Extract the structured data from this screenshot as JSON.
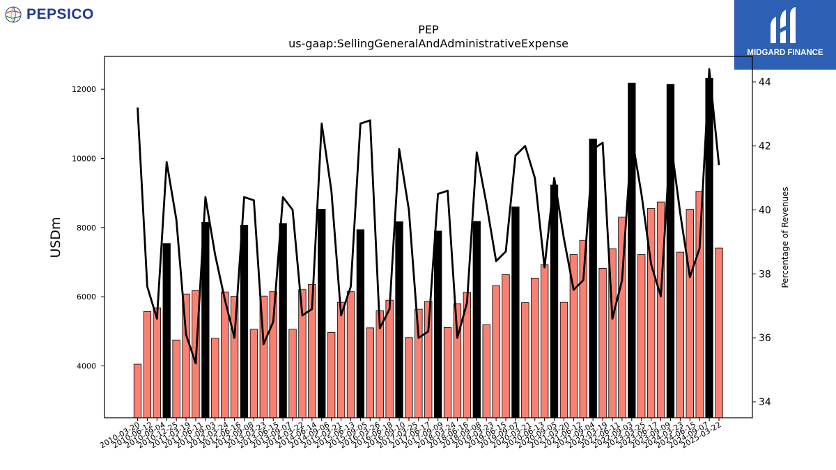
{
  "branding": {
    "left_logo_text": "PEPSICO",
    "right_logo_text": "MIDGARD FINANCE",
    "right_logo_bg": "#2d5fb4"
  },
  "chart_data": {
    "type": "bar",
    "title": "PEP",
    "subtitle": "us-gaap:SellingGeneralAndAdministrativeExpense",
    "ylabel": "USDm",
    "y2label": "Percentage of Revenues",
    "ylim": [
      2500,
      12950
    ],
    "y2lim": [
      33.5,
      44.8
    ],
    "yticks": [
      4000,
      6000,
      8000,
      10000,
      12000
    ],
    "y2ticks": [
      34,
      36,
      38,
      40,
      42,
      44
    ],
    "bar_colors": {
      "quarter": "#fa8072",
      "annual": "#000000"
    },
    "line_color": "#000000",
    "xtick_labels": [
      "2010-03-20",
      "2010-06-12",
      "2010-09-04",
      "2010-12-25",
      "2011-03-19",
      "2011-06-11",
      "2011-09-03",
      "2012-03-24",
      "2012-06-16",
      "2012-09-08",
      "2013-03-23",
      "2013-06-15",
      "2013-09-07",
      "2014-03-22",
      "2014-06-14",
      "2014-09-06",
      "2015-03-21",
      "2015-06-13",
      "2015-09-05",
      "2016-03-26",
      "2016-06-18",
      "2016-09-10",
      "2017-03-25",
      "2017-06-17",
      "2017-09-09",
      "2018-03-24",
      "2018-06-16",
      "2018-09-08",
      "2019-03-23",
      "2019-06-15",
      "2019-09-07",
      "2020-03-21",
      "2020-06-13",
      "2020-09-05",
      "2021-03-20",
      "2021-06-12",
      "2021-09-04",
      "2022-03-19",
      "2022-06-11",
      "2022-09-03",
      "2023-03-25",
      "2023-06-17",
      "2023-09-09",
      "2024-03-23",
      "2024-06-15",
      "2024-09-07",
      "2025-03-22"
    ],
    "series": [
      {
        "kind": "bar",
        "values": [
          4050,
          5570,
          5680,
          7540,
          4750,
          6080,
          6180,
          8150,
          4800,
          6140,
          6010,
          8070,
          5060,
          6020,
          6150,
          8120,
          5060,
          6210,
          6360,
          8530,
          4970,
          5840,
          6150,
          7940,
          5100,
          5600,
          5900,
          8170,
          4820,
          5640,
          5870,
          7900,
          5110,
          5800,
          6130,
          8180,
          5190,
          6320,
          6640,
          8600,
          5830,
          6540,
          6930,
          9230,
          5840,
          7220,
          7630,
          10560,
          6820,
          7390,
          8300,
          12180,
          7220,
          8550,
          8740,
          12140,
          7290,
          8530,
          9050,
          12320,
          7410
        ],
        "annual_flags": [
          0,
          0,
          0,
          1,
          0,
          0,
          0,
          1,
          0,
          0,
          0,
          1,
          0,
          0,
          0,
          1,
          0,
          0,
          0,
          1,
          0,
          0,
          0,
          1,
          0,
          0,
          0,
          1,
          0,
          0,
          0,
          1,
          0,
          0,
          0,
          1,
          0,
          0,
          0,
          1,
          0,
          0,
          0,
          1,
          0,
          0,
          0,
          1,
          0,
          0,
          0,
          1,
          0,
          0,
          0,
          1,
          0,
          0,
          0,
          1,
          0
        ]
      },
      {
        "kind": "line",
        "values": [
          43.2,
          37.6,
          36.6,
          41.5,
          39.7,
          36.1,
          35.2,
          40.4,
          38.6,
          37.2,
          36.0,
          40.4,
          40.3,
          35.8,
          36.5,
          40.4,
          40.0,
          36.7,
          36.9,
          42.7,
          40.6,
          36.7,
          37.6,
          42.7,
          42.8,
          36.3,
          36.9,
          41.9,
          40.0,
          36.0,
          36.2,
          40.5,
          40.6,
          36.0,
          37.1,
          41.8,
          40.2,
          38.4,
          38.7,
          41.7,
          42.0,
          41.0,
          38.2,
          41.0,
          39.1,
          37.5,
          37.8,
          41.9,
          42.1,
          36.6,
          37.8,
          42.3,
          40.5,
          38.3,
          37.3,
          42.2,
          39.9,
          37.9,
          38.8,
          44.4,
          41.4
        ]
      }
    ]
  }
}
